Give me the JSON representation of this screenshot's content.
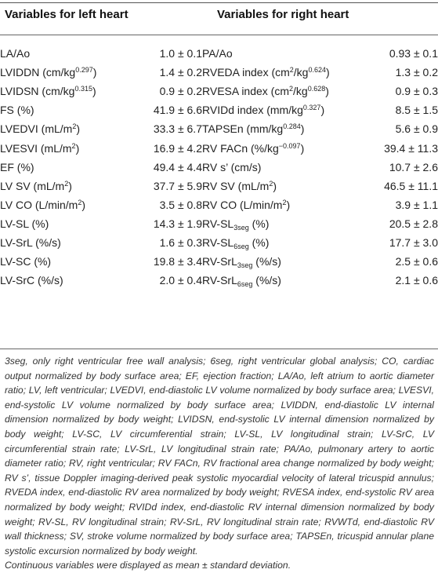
{
  "headers": {
    "left": "Variables for left heart",
    "right": "Variables for right heart"
  },
  "rows": [
    {
      "left": {
        "name": "LA/Ao",
        "value": "1.0 ± 0.1"
      },
      "right": {
        "name": "PA/Ao",
        "value": "0.93 ± 0.1"
      }
    },
    {
      "left": {
        "name": "LVIDDN (cm/kg",
        "sup": "0.297",
        "suffix": ")",
        "value": "1.4 ± 0.2"
      },
      "right": {
        "name": "RVEDA index (cm",
        "sup": "2",
        "mid": "/kg",
        "sup2": "0.624",
        "suffix": ")",
        "value": "1.3 ± 0.2"
      }
    },
    {
      "left": {
        "name": "LVIDSN (cm/kg",
        "sup": "0.315",
        "suffix": ")",
        "value": "0.9 ± 0.2"
      },
      "right": {
        "name": "RVESA index (cm",
        "sup": "2",
        "mid": "/kg",
        "sup2": "0.628",
        "suffix": ")",
        "value": "0.9 ± 0.3"
      }
    },
    {
      "left": {
        "name": "FS (%)",
        "value": "41.9 ± 6.6"
      },
      "right": {
        "name": "RVIDd index (mm/kg",
        "sup": "0.327",
        "suffix": ")",
        "value": "8.5 ± 1.5"
      }
    },
    {
      "left": {
        "name": "LVEDVI (mL/m",
        "sup": "2",
        "suffix": ")",
        "value": "33.3 ± 6.7"
      },
      "right": {
        "name": "TAPSEn (mm/kg",
        "sup": "0.284",
        "suffix": ")",
        "value": "5.6 ± 0.9"
      }
    },
    {
      "left": {
        "name": "LVESVI (mL/m",
        "sup": "2",
        "suffix": ")",
        "value": "16.9 ± 4.2"
      },
      "right": {
        "name": "RV FACn (%/kg",
        "sup": "−0.097",
        "suffix": ")",
        "value": "39.4 ± 11.3"
      }
    },
    {
      "left": {
        "name": "EF (%)",
        "value": "49.4 ± 4.4"
      },
      "right": {
        "name": "RV s’ (cm/s)",
        "value": "10.7 ± 2.6"
      }
    },
    {
      "left": {
        "name": "LV SV (mL/m",
        "sup": "2",
        "suffix": ")",
        "value": "37.7 ± 5.9"
      },
      "right": {
        "name": "RV SV (mL/m",
        "sup": "2",
        "suffix": ")",
        "value": "46.5 ± 11.1"
      }
    },
    {
      "left": {
        "name": "LV CO (L/min/m",
        "sup": "2",
        "suffix": ")",
        "value": "3.5 ± 0.8"
      },
      "right": {
        "name": "RV CO (L/min/m",
        "sup": "2",
        "suffix": ")",
        "value": "3.9 ± 1.1"
      }
    },
    {
      "left": {
        "name": "LV-SL (%)",
        "value": "14.3 ± 1.9"
      },
      "right": {
        "name": "RV-SL",
        "sub": "3seg",
        "suffix": " (%)",
        "value": "20.5 ± 2.8"
      }
    },
    {
      "left": {
        "name": "LV-SrL (%/s)",
        "value": "1.6 ± 0.3"
      },
      "right": {
        "name": "RV-SL",
        "sub": "6seg",
        "suffix": " (%)",
        "value": "17.7 ± 3.0"
      }
    },
    {
      "left": {
        "name": "LV-SC (%)",
        "value": "19.8 ± 3.4"
      },
      "right": {
        "name": "RV-SrL",
        "sub": "3seg",
        "suffix": " (%/s)",
        "value": "2.5 ± 0.6"
      }
    },
    {
      "left": {
        "name": "LV-SrC (%/s)",
        "value": "2.0 ± 0.4"
      },
      "right": {
        "name": "RV-SrL",
        "sub": "6seg",
        "suffix": " (%/s)",
        "value": "2.1 ± 0.6"
      }
    }
  ],
  "footnote": {
    "abbreviations": "3seg, only right ventricular free wall analysis; 6seg, right ventricular global analysis; CO, cardiac output normalized by body surface area; EF, ejection fraction; LA/Ao, left atrium to aortic diameter ratio; LV, left ventricular; LVEDVI, end-diastolic LV volume normalized by body surface area; LVESVI, end-systolic LV volume normalized by body surface area; LVIDDN, end-diastolic LV internal dimension normalized by body weight; LVIDSN, end-systolic LV internal dimension normalized by body weight; LV-SC, LV circumferential strain; LV-SL, LV longitudinal strain; LV-SrC, LV circumferential strain rate; LV-SrL, LV longitudinal strain rate; PA/Ao, pulmonary artery to aortic diameter ratio; RV, right ventricular; RV FACn, RV fractional area change normalized by body weight; RV s’, tissue Doppler imaging-derived peak systolic myocardial velocity of lateral tricuspid annulus; RVEDA index, end-diastolic RV area normalized by body weight; RVESA index, end-systolic RV area normalized by body weight; RVIDd index, end-diastolic RV internal dimension normalized by body weight; RV-SL, RV longitudinal strain; RV-SrL, RV longitudinal strain rate; RVWTd, end-diastolic RV wall thickness; SV, stroke volume normalized by body surface area; TAPSEn, tricuspid annular plane systolic excursion normalized by body weight.",
    "note": "Continuous variables were displayed as mean ± standard deviation."
  }
}
